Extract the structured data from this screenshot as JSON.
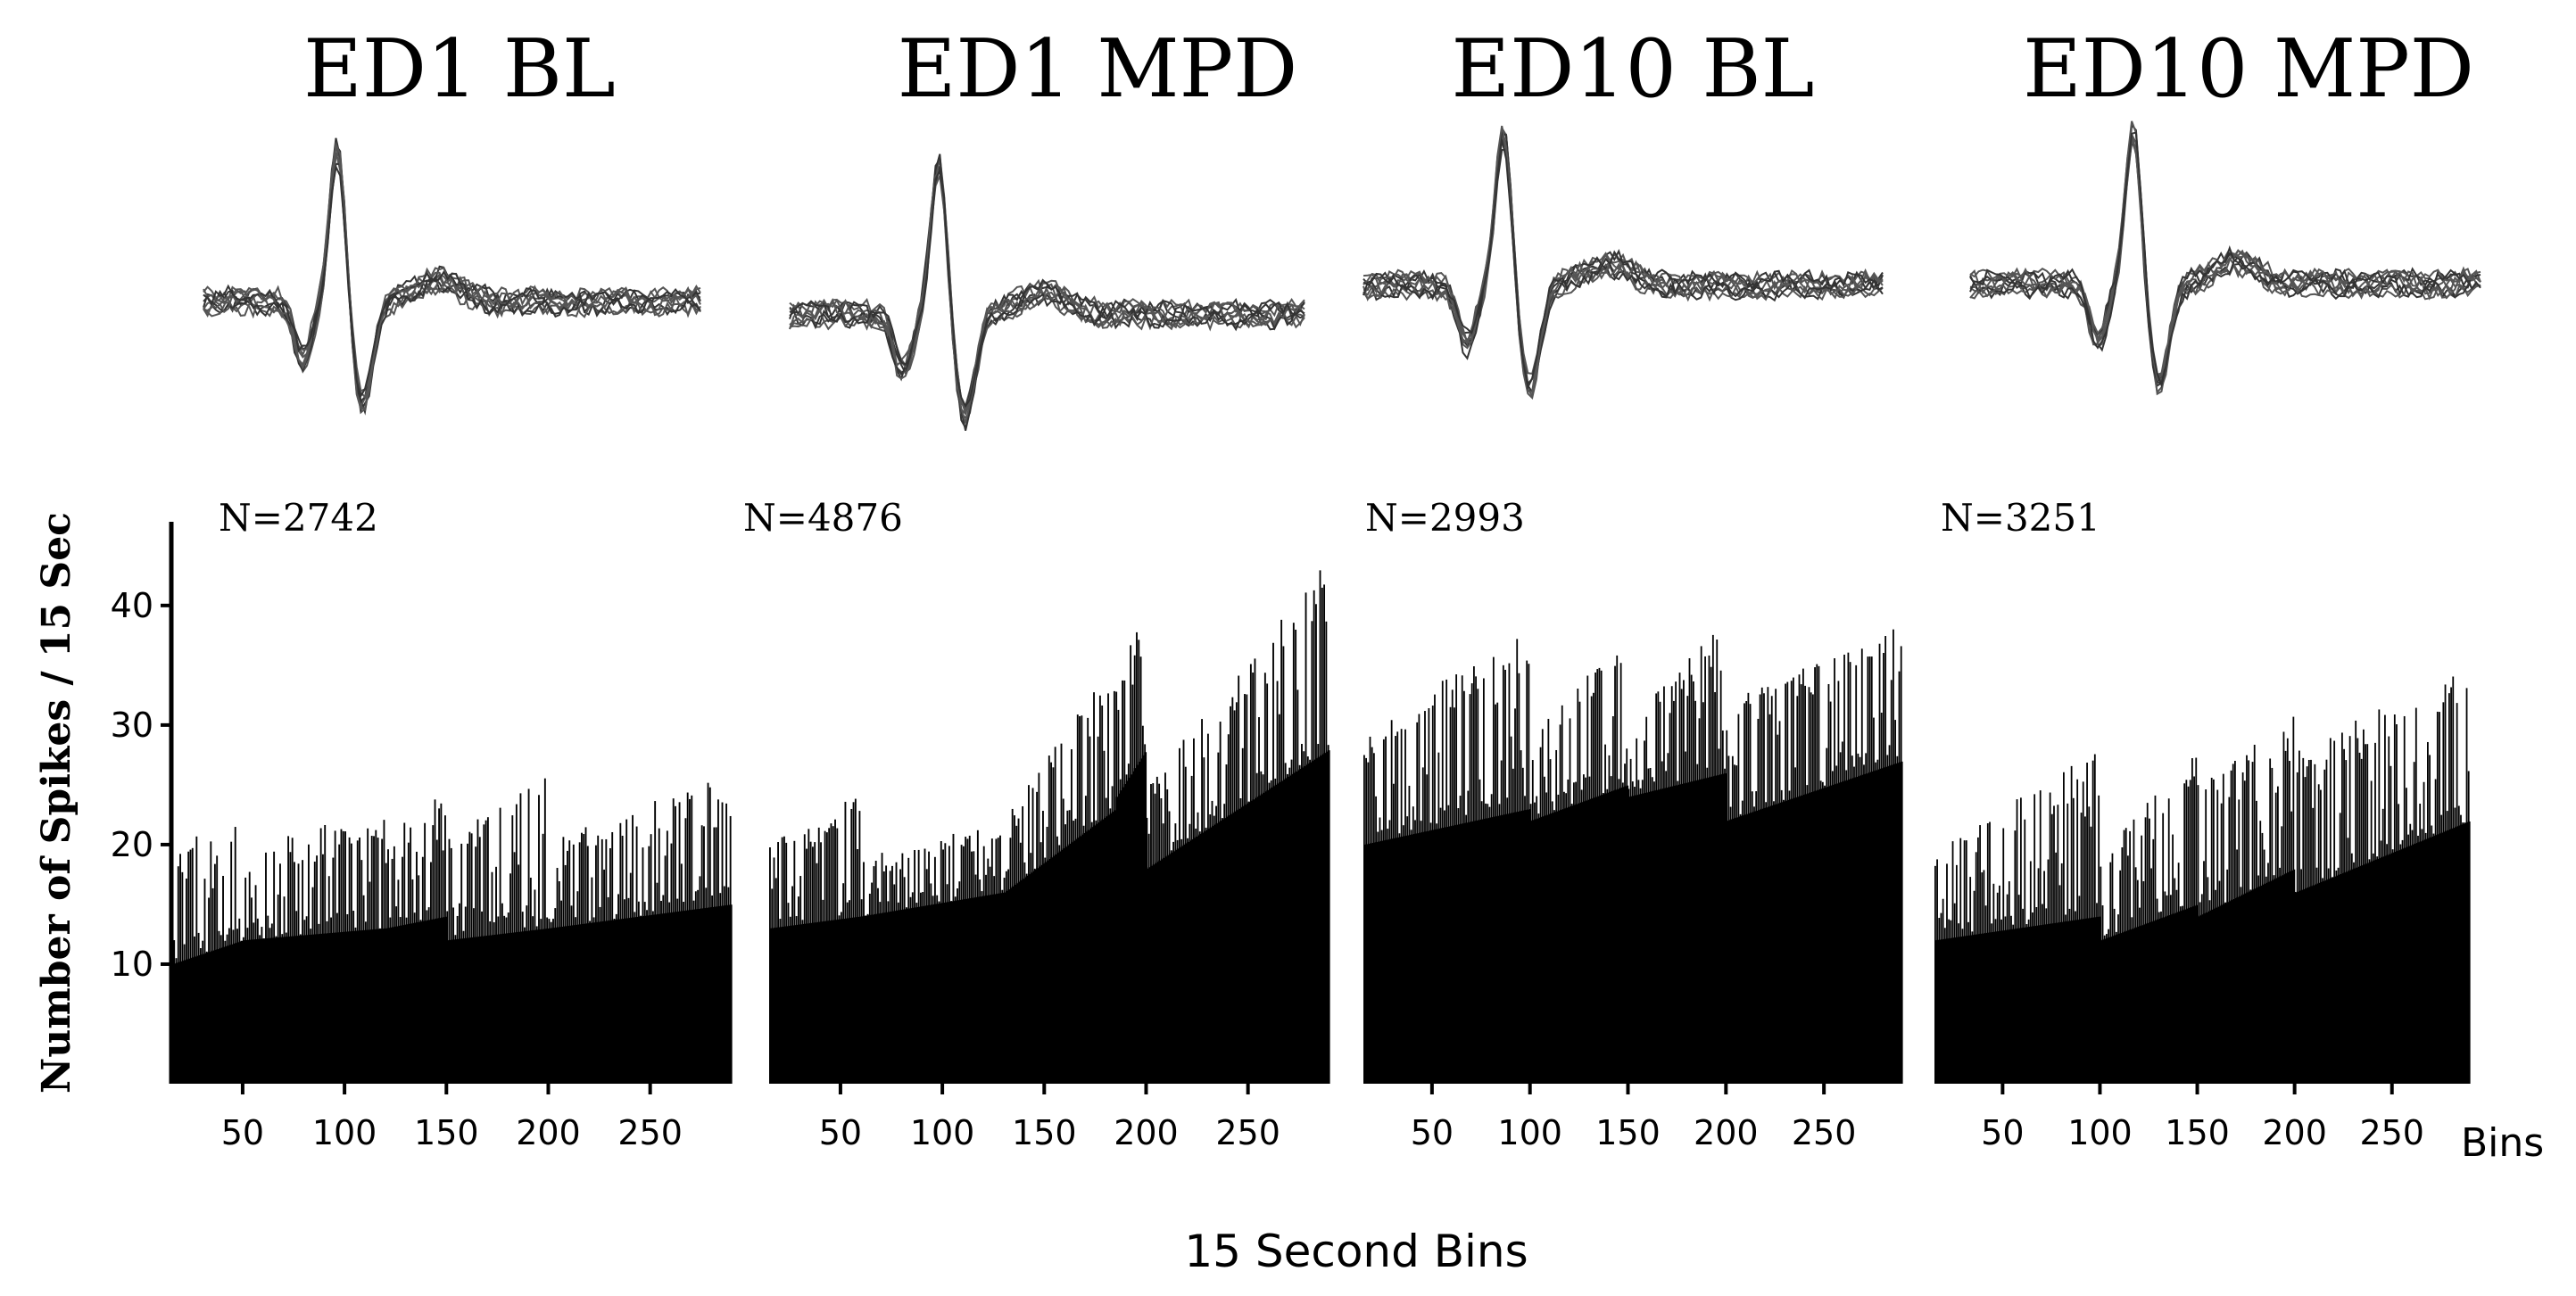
{
  "chart_data": {
    "type": "bar",
    "ylabel": "Number of Spikes / 15 Sec",
    "xlabel": "15 Second Bins",
    "x_axis_unit_label": "Bins",
    "ylim": [
      0,
      47
    ],
    "xlim": [
      15,
      290
    ],
    "yticks": [
      10,
      20,
      30,
      40
    ],
    "xticks": [
      50,
      100,
      150,
      200,
      250
    ],
    "grid": false,
    "panels": [
      {
        "title": "ED1 BL",
        "n_label": "N=2742",
        "segments": [
          {
            "x": [
              15,
              50
            ],
            "low": [
              10,
              12
            ],
            "high": [
              20,
              24
            ]
          },
          {
            "x": [
              50,
              120
            ],
            "low": [
              12,
              13
            ],
            "high": [
              20,
              23
            ]
          },
          {
            "x": [
              120,
              150
            ],
            "low": [
              13,
              14
            ],
            "high": [
              21,
              25
            ]
          },
          {
            "x": [
              150,
              200
            ],
            "low": [
              12,
              13
            ],
            "high": [
              21,
              26
            ]
          },
          {
            "x": [
              200,
              290
            ],
            "low": [
              13,
              15
            ],
            "high": [
              21,
              26
            ]
          }
        ]
      },
      {
        "title": "ED1 MPD",
        "n_label": "N=4876",
        "segments": [
          {
            "x": [
              15,
              60
            ],
            "low": [
              13,
              14
            ],
            "high": [
              20,
              25
            ]
          },
          {
            "x": [
              60,
              130
            ],
            "low": [
              14,
              16
            ],
            "high": [
              19,
              22
            ]
          },
          {
            "x": [
              130,
              185
            ],
            "low": [
              16,
              23
            ],
            "high": [
              22,
              36
            ]
          },
          {
            "x": [
              185,
              200
            ],
            "low": [
              24,
              28
            ],
            "high": [
              33,
              42
            ]
          },
          {
            "x": [
              200,
              290
            ],
            "low": [
              18,
              28
            ],
            "high": [
              25,
              44
            ]
          }
        ]
      },
      {
        "title": "ED10 BL",
        "n_label": "N=2993",
        "segments": [
          {
            "x": [
              15,
              100
            ],
            "low": [
              20,
              23
            ],
            "high": [
              30,
              38
            ]
          },
          {
            "x": [
              100,
              150
            ],
            "low": [
              22,
              25
            ],
            "high": [
              30,
              38
            ]
          },
          {
            "x": [
              150,
              200
            ],
            "low": [
              24,
              26
            ],
            "high": [
              31,
              39
            ]
          },
          {
            "x": [
              200,
              290
            ],
            "low": [
              22,
              27
            ],
            "high": [
              32,
              39
            ]
          }
        ]
      },
      {
        "title": "ED10 MPD",
        "n_label": "N=3251",
        "segments": [
          {
            "x": [
              15,
              100
            ],
            "low": [
              12,
              14
            ],
            "high": [
              20,
              28
            ]
          },
          {
            "x": [
              100,
              150
            ],
            "low": [
              12,
              15
            ],
            "high": [
              20,
              28
            ]
          },
          {
            "x": [
              150,
              200
            ],
            "low": [
              14,
              18
            ],
            "high": [
              25,
              31
            ]
          },
          {
            "x": [
              200,
              290
            ],
            "low": [
              16,
              22
            ],
            "high": [
              28,
              35
            ]
          }
        ]
      }
    ]
  }
}
